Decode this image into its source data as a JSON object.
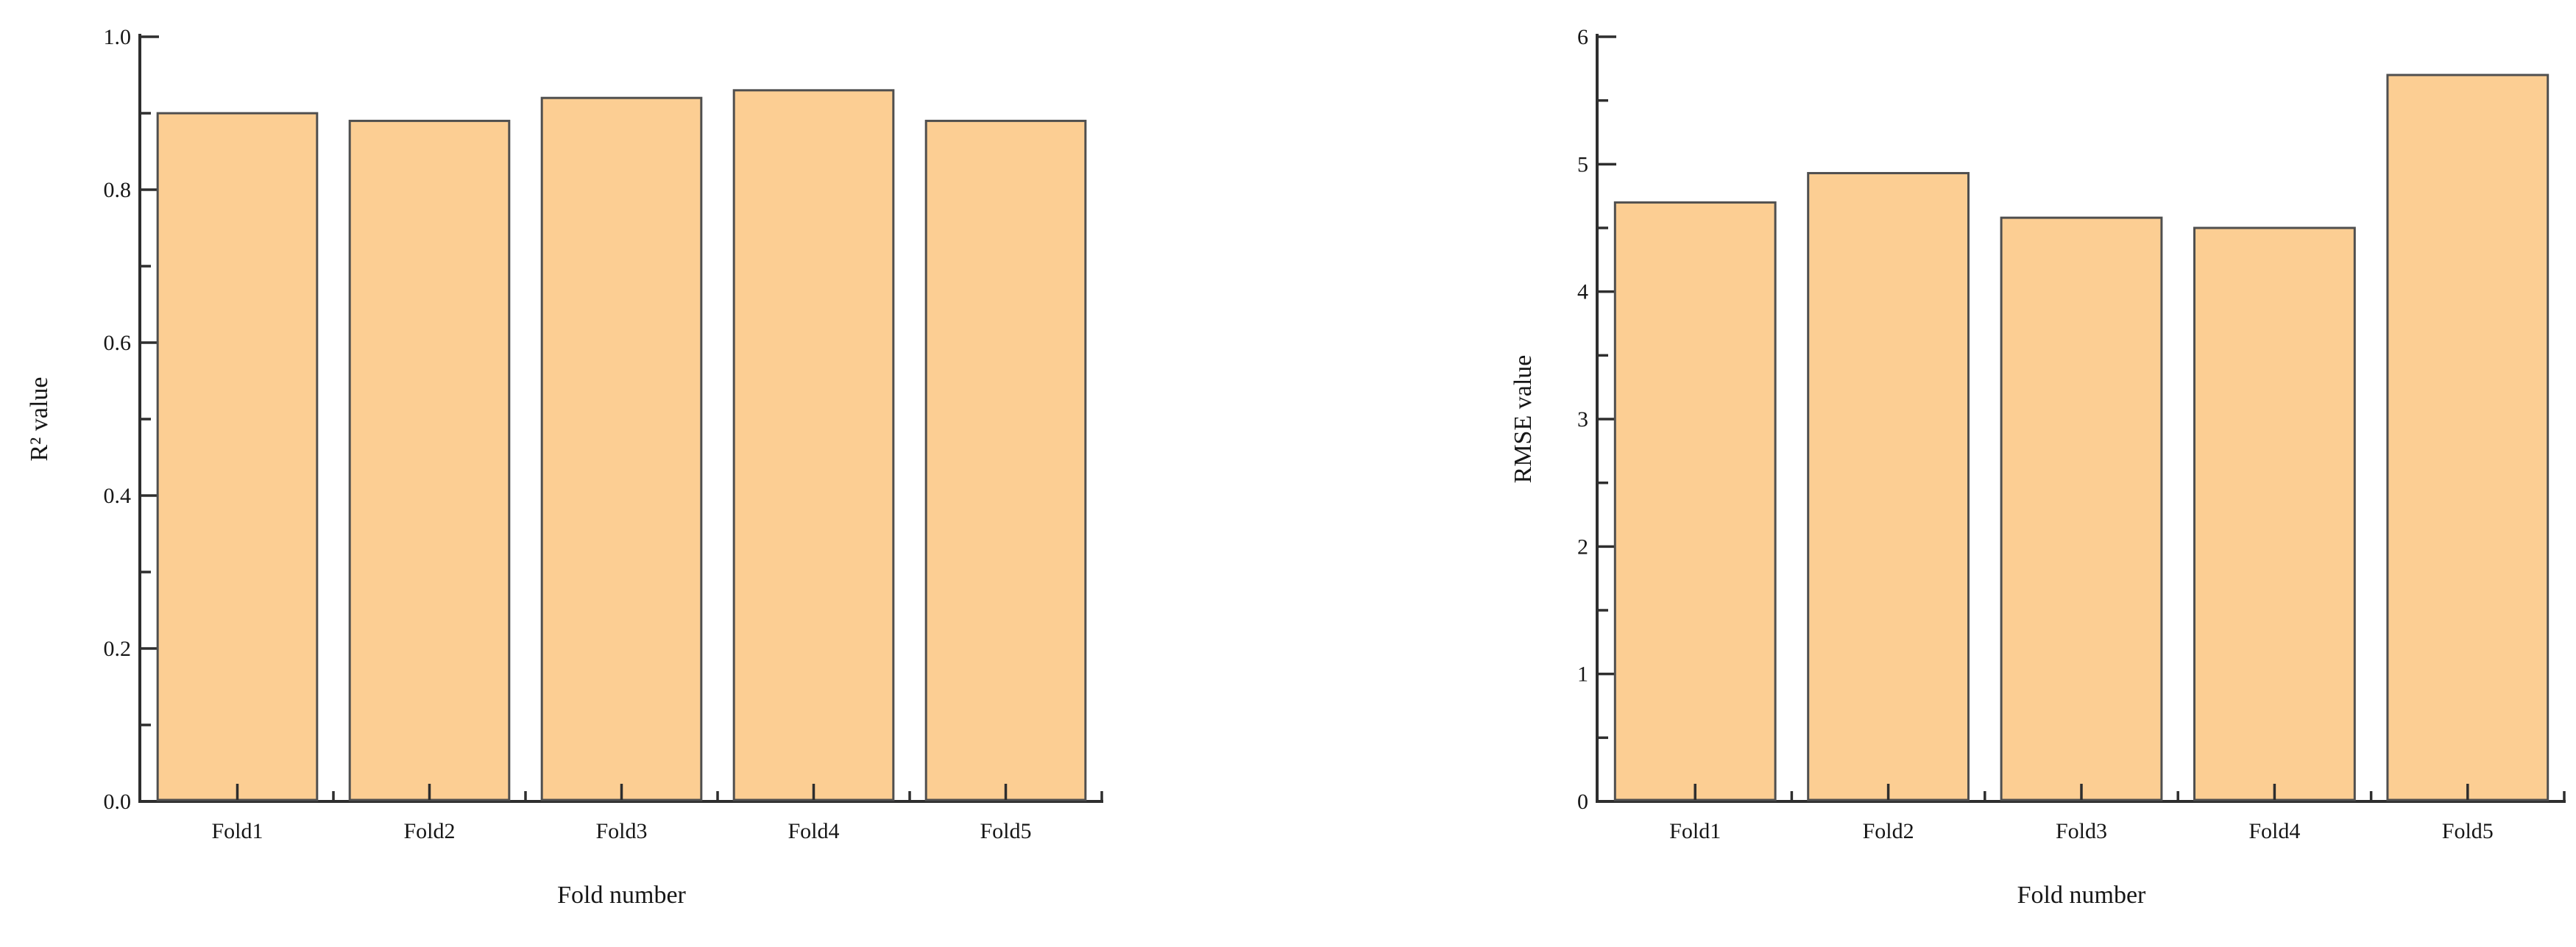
{
  "page": {
    "background": "#ffffff",
    "figure_type": "two-panel bar figure"
  },
  "colors": {
    "bar_fill": "#FCCE93",
    "bar_edge": "#4f4f4f",
    "axis": "#2e2e2e",
    "text": "#161616"
  },
  "chart_data": [
    {
      "type": "bar",
      "title": "",
      "categories": [
        "Fold1",
        "Fold2",
        "Fold3",
        "Fold4",
        "Fold5"
      ],
      "values": [
        0.9,
        0.89,
        0.92,
        0.93,
        0.89
      ],
      "xlabel": "Fold number",
      "ylabel": "R² value",
      "ylim": [
        0.0,
        1.0
      ],
      "yticks": {
        "values": [
          0.0,
          0.2,
          0.4,
          0.6,
          0.8,
          1.0
        ],
        "labels": [
          "0.0",
          "0.2",
          "0.4",
          "0.6",
          "0.8",
          "1.0"
        ]
      },
      "yminor": [
        0.1,
        0.3,
        0.5,
        0.7,
        0.9
      ],
      "grid": false,
      "legend": null
    },
    {
      "type": "bar",
      "title": "",
      "categories": [
        "Fold1",
        "Fold2",
        "Fold3",
        "Fold4",
        "Fold5"
      ],
      "values": [
        4.7,
        4.93,
        4.58,
        4.5,
        5.7
      ],
      "xlabel": "Fold number",
      "ylabel": "RMSE value",
      "ylim": [
        0,
        6
      ],
      "yticks": {
        "values": [
          0,
          1,
          2,
          3,
          4,
          5,
          6
        ],
        "labels": [
          "0",
          "1",
          "2",
          "3",
          "4",
          "5",
          "6"
        ]
      },
      "yminor": [
        0.5,
        1.5,
        2.5,
        3.5,
        4.5,
        5.5
      ],
      "grid": false,
      "legend": null
    }
  ]
}
